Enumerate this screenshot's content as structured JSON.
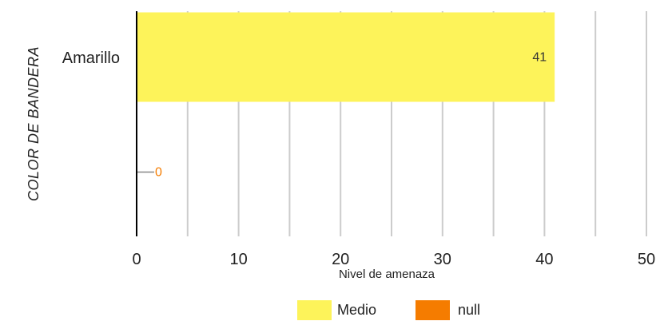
{
  "chart_data": {
    "type": "bar",
    "orientation": "horizontal",
    "categories": [
      "Amarillo",
      ""
    ],
    "series": [
      {
        "name": "Medio",
        "color": "#fdf35a",
        "values": [
          41,
          null
        ],
        "data_labels": [
          "41",
          ""
        ]
      },
      {
        "name": "null",
        "color": "#f57c00",
        "values": [
          null,
          0
        ],
        "data_labels": [
          "",
          "0"
        ]
      }
    ],
    "xlabel": "Nivel de amenaza",
    "ylabel": "COLOR DE BANDERA",
    "xlim": [
      0,
      50
    ],
    "xticks": [
      "0",
      "10",
      "20",
      "30",
      "40",
      "50"
    ],
    "grid": true,
    "legend": "bottom",
    "colors": {
      "medio": "#fdf35a",
      "null": "#f57c00",
      "grid": "#cccccc",
      "axis": "#000000",
      "null_leader": "#888888",
      "label_medio": "#333333",
      "label_null": "#f57c00"
    }
  }
}
